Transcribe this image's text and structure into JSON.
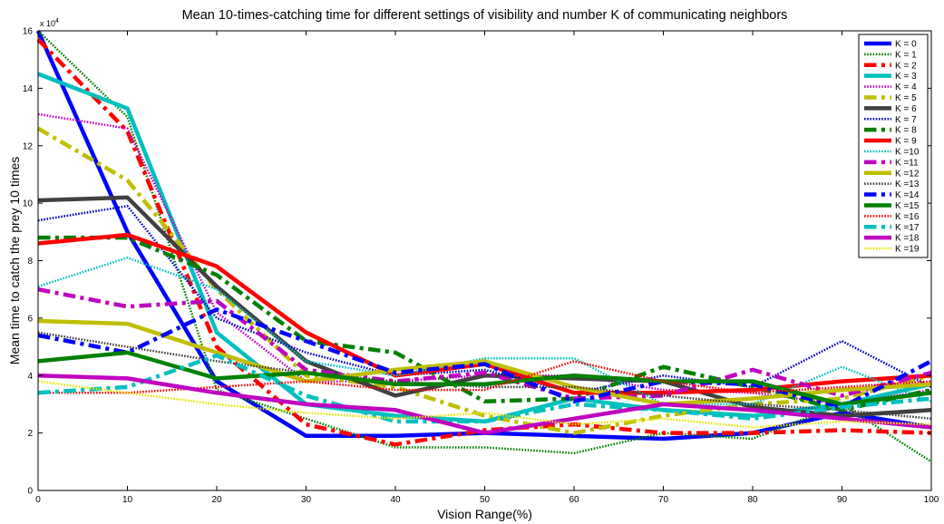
{
  "chart_data": {
    "type": "line",
    "title": "Mean 10-times-catching time for different settings of visibility and number K of communicating neighbors",
    "xlabel": "Vision Range(%)",
    "ylabel": "Mean time to catch the prey 10 times",
    "y_exponent_label": "x 10",
    "y_exponent_power": "4",
    "xlim": [
      0,
      100
    ],
    "ylim": [
      0,
      160000
    ],
    "x_ticks": [
      0,
      10,
      20,
      30,
      40,
      50,
      60,
      70,
      80,
      90,
      100
    ],
    "y_ticks": [
      0,
      20000,
      40000,
      60000,
      80000,
      100000,
      120000,
      140000,
      160000
    ],
    "x_tick_labels": [
      "0",
      "10",
      "20",
      "30",
      "40",
      "50",
      "60",
      "70",
      "80",
      "90",
      "100"
    ],
    "y_tick_labels": [
      "0",
      "2",
      "4",
      "6",
      "8",
      "10",
      "12",
      "14",
      "16"
    ],
    "grid": false,
    "legend_position": "top-right",
    "x": [
      0,
      10,
      20,
      30,
      40,
      50,
      60,
      70,
      80,
      90,
      100
    ],
    "series": [
      {
        "name": "K = 0",
        "color": "#0000ff",
        "style": "solid",
        "width": 4.5,
        "values": [
          160000,
          90000,
          38000,
          19000,
          19000,
          20000,
          19000,
          18000,
          20000,
          27000,
          22000
        ]
      },
      {
        "name": "K = 1",
        "color": "#008000",
        "style": "dotted",
        "width": 2.5,
        "values": [
          160000,
          130000,
          35000,
          25000,
          15000,
          15000,
          13000,
          20000,
          18000,
          30000,
          10000
        ]
      },
      {
        "name": "K = 2",
        "color": "#ff0000",
        "style": "dashdot",
        "width": 4.5,
        "values": [
          157000,
          125000,
          50000,
          23000,
          16000,
          21000,
          23000,
          20000,
          20000,
          21000,
          20000
        ]
      },
      {
        "name": "K = 3",
        "color": "#00bfbf",
        "style": "solid",
        "width": 4.5,
        "values": [
          145000,
          133000,
          55000,
          30000,
          26000,
          24000,
          32000,
          28000,
          26000,
          30000,
          37000
        ]
      },
      {
        "name": "K = 4",
        "color": "#bf00bf",
        "style": "dotted",
        "width": 2.5,
        "values": [
          131000,
          126000,
          62000,
          38000,
          38000,
          40000,
          40000,
          35000,
          34000,
          30000,
          35000
        ]
      },
      {
        "name": "K = 5",
        "color": "#bfbf00",
        "style": "dashdot",
        "width": 4.5,
        "values": [
          126000,
          108000,
          70000,
          40000,
          36000,
          26000,
          20000,
          26000,
          30000,
          32000,
          40000
        ]
      },
      {
        "name": "K = 6",
        "color": "#404040",
        "style": "solid",
        "width": 4.5,
        "values": [
          101000,
          102000,
          71000,
          45000,
          33000,
          40000,
          39000,
          38000,
          29000,
          26000,
          28000
        ]
      },
      {
        "name": "K = 7",
        "color": "#0000bf",
        "style": "dotted",
        "width": 2.5,
        "values": [
          94000,
          99000,
          60000,
          48000,
          40000,
          42000,
          34000,
          40000,
          36000,
          52000,
          36000
        ]
      },
      {
        "name": "K = 8",
        "color": "#008000",
        "style": "dashdot",
        "width": 4.5,
        "values": [
          88000,
          88000,
          75000,
          52000,
          48000,
          31000,
          32000,
          43000,
          36000,
          28000,
          35000
        ]
      },
      {
        "name": "K = 9",
        "color": "#ff0000",
        "style": "solid",
        "width": 4.5,
        "values": [
          86000,
          89000,
          78000,
          55000,
          40000,
          44000,
          34000,
          34000,
          35000,
          38000,
          40000
        ]
      },
      {
        "name": "K =10",
        "color": "#00bfbf",
        "style": "dotted",
        "width": 2.5,
        "values": [
          71000,
          81000,
          70000,
          45000,
          40000,
          46000,
          46000,
          30000,
          30000,
          43000,
          31000
        ]
      },
      {
        "name": "K =11",
        "color": "#bf00bf",
        "style": "dashdot",
        "width": 4.5,
        "values": [
          70000,
          64000,
          66000,
          42000,
          38000,
          41000,
          32000,
          33000,
          42000,
          33000,
          41000
        ]
      },
      {
        "name": "K =12",
        "color": "#bfbf00",
        "style": "solid",
        "width": 4.5,
        "values": [
          59000,
          58000,
          48000,
          38000,
          42000,
          45000,
          36000,
          30000,
          32000,
          35000,
          37000
        ]
      },
      {
        "name": "K =13",
        "color": "#404040",
        "style": "dotted",
        "width": 2.5,
        "values": [
          55000,
          50000,
          45000,
          41000,
          38000,
          36000,
          36000,
          33000,
          30000,
          28000,
          25000
        ]
      },
      {
        "name": "K =14",
        "color": "#0000ff",
        "style": "dashdot",
        "width": 4.5,
        "values": [
          54000,
          48000,
          63000,
          52000,
          41000,
          44000,
          31000,
          38000,
          37000,
          29000,
          45000
        ]
      },
      {
        "name": "K =15",
        "color": "#008000",
        "style": "solid",
        "width": 4.5,
        "values": [
          45000,
          48000,
          39000,
          41000,
          37000,
          37000,
          40000,
          38000,
          38000,
          30000,
          34000
        ]
      },
      {
        "name": "K =16",
        "color": "#ff0000",
        "style": "dotted",
        "width": 2.5,
        "values": [
          34000,
          34000,
          36000,
          38000,
          35000,
          35000,
          45000,
          38000,
          34000,
          36000,
          38000
        ]
      },
      {
        "name": "K =17",
        "color": "#00bfbf",
        "style": "dashdot",
        "width": 4.5,
        "values": [
          34000,
          36000,
          47000,
          33000,
          24000,
          24000,
          30000,
          28000,
          25000,
          29000,
          32000
        ]
      },
      {
        "name": "K =18",
        "color": "#bf00bf",
        "style": "solid",
        "width": 4.5,
        "values": [
          40000,
          39000,
          34000,
          30000,
          28000,
          20000,
          25000,
          30000,
          28000,
          25000,
          22000
        ]
      },
      {
        "name": "K =19",
        "color": "#e6e600",
        "style": "dotted",
        "width": 2.5,
        "values": [
          38000,
          34000,
          30000,
          27000,
          25000,
          27000,
          23000,
          25000,
          22000,
          24000,
          23000
        ]
      }
    ]
  }
}
